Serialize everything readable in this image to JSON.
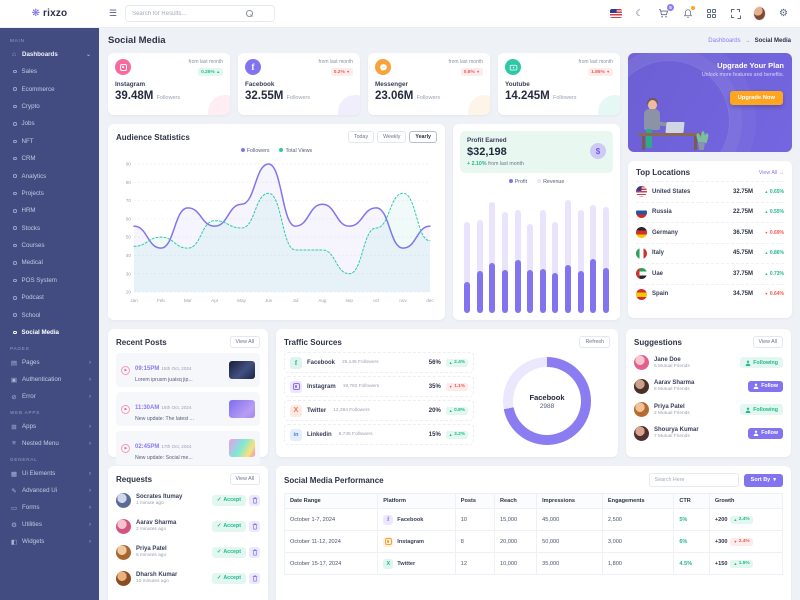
{
  "header": {
    "search_placeholder": "Search for Results...",
    "cart_count": "5"
  },
  "sidebar": {
    "logo": "rixzo",
    "main_label": "MAIN",
    "dashboards_label": "Dashboards",
    "dash_items": [
      "Sales",
      "Ecommerce",
      "Crypto",
      "Jobs",
      "NFT",
      "CRM",
      "Analytics",
      "Projects",
      "HRM",
      "Stocks",
      "Courses",
      "Medical",
      "POS System",
      "Podcast",
      "School",
      "Social Media"
    ],
    "pages_label": "PAGES",
    "pages_items": [
      "Pages",
      "Authentication",
      "Error"
    ],
    "webapps_label": "WEB APPS",
    "webapps_items": [
      "Apps",
      "Nested Menu"
    ],
    "general_label": "GENERAL",
    "general_items": [
      "Ui Elements",
      "Advanced Ui",
      "Forms",
      "Utilities",
      "Widgets"
    ]
  },
  "page": {
    "title": "Social Media",
    "breadcrumb_parent": "Dashboards",
    "breadcrumb_sep": "→",
    "breadcrumb_current": "Social Media"
  },
  "stats": {
    "from_last_month": "from last month",
    "followers_label": "Followers",
    "cards": [
      {
        "name": "Instagram",
        "value": "39.48M",
        "delta": "0.25%",
        "arrow": "▲"
      },
      {
        "name": "Facebook",
        "value": "32.55M",
        "delta": "0.2%",
        "arrow": "▼"
      },
      {
        "name": "Messenger",
        "value": "23.06M",
        "delta": "0.8%",
        "arrow": "▼"
      },
      {
        "name": "Youtube",
        "value": "14.245M",
        "delta": "1.85%",
        "arrow": "▼"
      }
    ]
  },
  "upgrade": {
    "title": "Upgrade Your Plan",
    "subtitle": "Unlock more features and benefits.",
    "button": "Upgrade Now"
  },
  "audience": {
    "title": "Audience Statistics",
    "tabs": [
      "Today",
      "Weekly",
      "Yearly"
    ],
    "legend": [
      "Followers",
      "Total Views"
    ]
  },
  "profit": {
    "title": "Profit Earned",
    "value": "$32,198",
    "delta": "+ 2.10%",
    "sub": "from last month",
    "icon": "$",
    "legend": [
      "Profit",
      "Revenue"
    ]
  },
  "top_locations": {
    "title": "Top Locations",
    "view_all": "View All →",
    "rows": [
      {
        "country": "United States",
        "value": "32.75M",
        "arrow": "▲",
        "delta": "0.65%"
      },
      {
        "country": "Russia",
        "value": "22.75M",
        "arrow": "▲",
        "delta": "0.55%"
      },
      {
        "country": "Germany",
        "value": "36.75M",
        "arrow": "▼",
        "delta": "0.69%"
      },
      {
        "country": "Italy",
        "value": "45.75M",
        "arrow": "▲",
        "delta": "0.86%"
      },
      {
        "country": "Uae",
        "value": "37.75M",
        "arrow": "▲",
        "delta": "0.73%"
      },
      {
        "country": "Spain",
        "value": "34.75M",
        "arrow": "▼",
        "delta": "0.64%"
      }
    ]
  },
  "recent_posts": {
    "title": "Recent Posts",
    "view_all": "View All",
    "rows": [
      {
        "time": "09:15PM",
        "date": "15th Oct, 2024",
        "text": "Lorem iprusm juaisq jip..."
      },
      {
        "time": "11:30AM",
        "date": "16th Oct, 2024",
        "text": "New update: The latest ..."
      },
      {
        "time": "02:45PM",
        "date": "17th Oct, 2024",
        "text": "New update: Social me..."
      }
    ]
  },
  "traffic": {
    "title": "Traffic Sources",
    "refresh": "Refresh",
    "donut_label": "Facebook",
    "donut_value": "2988",
    "rows": [
      {
        "name": "Facebook",
        "followers": "25,145 Followers",
        "share": "56%",
        "arrow": "▲",
        "delta": "2.4%"
      },
      {
        "name": "Instagram",
        "followers": "19,782 Followers",
        "share": "35%",
        "arrow": "▼",
        "delta": "1.1%"
      },
      {
        "name": "Twitter",
        "followers": "12,384 Followers",
        "share": "20%",
        "arrow": "▲",
        "delta": "0.8%"
      },
      {
        "name": "Linkedin",
        "followers": "8,745 Followers",
        "share": "15%",
        "arrow": "▲",
        "delta": "3.2%"
      }
    ]
  },
  "suggestions": {
    "title": "Suggestions",
    "view_all": "View All",
    "rows": [
      {
        "name": "Jane Doe",
        "mutual": "5 Mutual Friends",
        "action": "Following"
      },
      {
        "name": "Aarav Sharma",
        "mutual": "8 Mutual Friends",
        "action": "Follow"
      },
      {
        "name": "Priya Patel",
        "mutual": "2 Mutual Friends",
        "action": "Following"
      },
      {
        "name": "Shourya Kumar",
        "mutual": "7 Mutual Friends",
        "action": "Follow"
      }
    ]
  },
  "requests": {
    "title": "Requests",
    "view_all": "View All",
    "accept_check": "✓",
    "accept_label": "Accept",
    "rows": [
      {
        "name": "Socrates Itumay",
        "time": "1 minute ago"
      },
      {
        "name": "Aarav Sharma",
        "time": "2 minutes ago"
      },
      {
        "name": "Priya Patel",
        "time": "5 minutes ago"
      },
      {
        "name": "Dharsh Kumar",
        "time": "10 minutes ago"
      }
    ]
  },
  "performance": {
    "title": "Social Media Performance",
    "search_placeholder": "Search Here",
    "sort_by": "Sort By",
    "caret": "▾",
    "columns": [
      "Date Range",
      "Platform",
      "Posts",
      "Reach",
      "Impressions",
      "Engagements",
      "CTR",
      "Growth"
    ],
    "rows": [
      {
        "date": "October 1-7, 2024",
        "platform": "Facebook",
        "posts": "10",
        "reach": "15,000",
        "impressions": "45,000",
        "engagements": "2,500",
        "ctr": "5%",
        "growth": "+200",
        "arrow": "▲",
        "delta": "2.4%"
      },
      {
        "date": "October 11-12, 2024",
        "platform": "Instagram",
        "posts": "8",
        "reach": "20,000",
        "impressions": "50,000",
        "engagements": "3,000",
        "ctr": "6%",
        "growth": "+300",
        "arrow": "▼",
        "delta": "2.4%"
      },
      {
        "date": "October 15-17, 2024",
        "platform": "Twitter",
        "posts": "12",
        "reach": "10,000",
        "impressions": "35,000",
        "engagements": "1,800",
        "ctr": "4.5%",
        "growth": "+150",
        "arrow": "▲",
        "delta": "1.5%"
      }
    ]
  },
  "chart_data": [
    {
      "type": "line",
      "title": "Audience Statistics",
      "x": [
        "Jan",
        "Feb",
        "Mar",
        "Apr",
        "May",
        "Jun",
        "Jul",
        "Aug",
        "sep",
        "oct",
        "nov",
        "dec"
      ],
      "ylim": [
        20,
        90
      ],
      "ytick_step": 10,
      "grid": true,
      "legend_position": "top",
      "series": [
        {
          "name": "Followers",
          "color": "#8274ee",
          "dash": false,
          "values": [
            56,
            44,
            66,
            56,
            68,
            90,
            56,
            68,
            56,
            66,
            44,
            56
          ]
        },
        {
          "name": "Total Views",
          "color": "#2fc9a8",
          "dash": true,
          "values": [
            45,
            50,
            44,
            59,
            55,
            74,
            43,
            43,
            30,
            55,
            74,
            48
          ]
        }
      ]
    },
    {
      "type": "bar",
      "title": "Profit Earned",
      "ylim": [
        0,
        100
      ],
      "series": [
        {
          "name": "Profit",
          "values": [
            25,
            33,
            40,
            34,
            42,
            34,
            35,
            32,
            38,
            33,
            43,
            36
          ]
        },
        {
          "name": "Revenue",
          "values": [
            72,
            74,
            88,
            80,
            82,
            71,
            82,
            72,
            90,
            82,
            86,
            84
          ]
        }
      ]
    },
    {
      "type": "donut",
      "title": "Traffic Sources",
      "label": "Facebook",
      "value": 2988,
      "percent": 72
    }
  ]
}
